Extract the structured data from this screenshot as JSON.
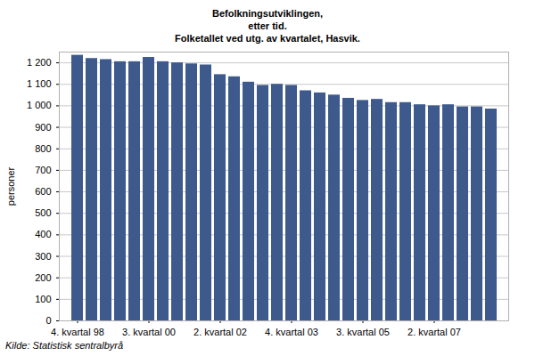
{
  "chart_data": {
    "type": "bar",
    "title": "Befolkningsutviklingen,\netter tid.\nFolketallet ved utg. av kvartalet, Hasvik.",
    "caption": "Kilde: Statistisk sentralbyrå",
    "y_label": "personer",
    "categories": [
      "4. kvartal 98",
      null,
      null,
      null,
      null,
      "3. kvartal 00",
      null,
      null,
      null,
      null,
      "2. kvartal 02",
      null,
      null,
      null,
      null,
      "4. kvartal 03",
      null,
      null,
      null,
      null,
      "3. kvartal 05",
      null,
      null,
      null,
      null,
      "2. kvartal 07",
      null,
      null,
      null,
      null
    ],
    "values": [
      1235,
      1220,
      1215,
      1205,
      1205,
      1225,
      1205,
      1200,
      1195,
      1190,
      1145,
      1135,
      1110,
      1095,
      1100,
      1095,
      1070,
      1060,
      1050,
      1035,
      1025,
      1030,
      1015,
      1015,
      1005,
      1000,
      1005,
      995,
      995,
      985
    ],
    "color": "#3e5a8c",
    "ylim": [
      0,
      1250
    ],
    "yticks": [
      0,
      100,
      200,
      300,
      400,
      500,
      600,
      700,
      800,
      900,
      {
        "value": 1000,
        "label": "1 000"
      },
      {
        "value": 1100,
        "label": "1 100"
      },
      {
        "value": 1200,
        "label": "1 200"
      }
    ],
    "grid": true
  }
}
